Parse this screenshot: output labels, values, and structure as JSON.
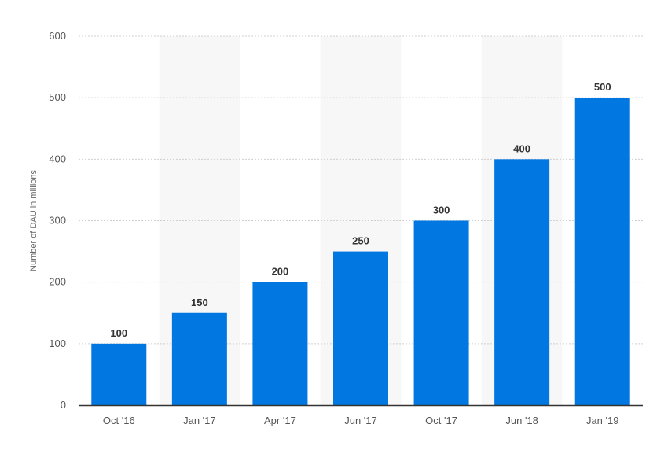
{
  "chart_data": {
    "type": "bar",
    "title": "",
    "xlabel": "",
    "ylabel": "Number of DAU in millions",
    "categories": [
      "Oct '16",
      "Jan '17",
      "Apr '17",
      "Jun '17",
      "Oct '17",
      "Jun '18",
      "Jan '19"
    ],
    "values": [
      100,
      150,
      200,
      250,
      300,
      400,
      500
    ],
    "data_labels": [
      "100",
      "150",
      "200",
      "250",
      "300",
      "400",
      "500"
    ],
    "ylim": [
      0,
      600
    ],
    "yticks": [
      0,
      100,
      200,
      300,
      400,
      500,
      600
    ],
    "grid": true,
    "gridline_style": "dotted",
    "alternating_band_color": "#f7f7f7",
    "bar_color": "#0077e1",
    "legend": "none"
  }
}
